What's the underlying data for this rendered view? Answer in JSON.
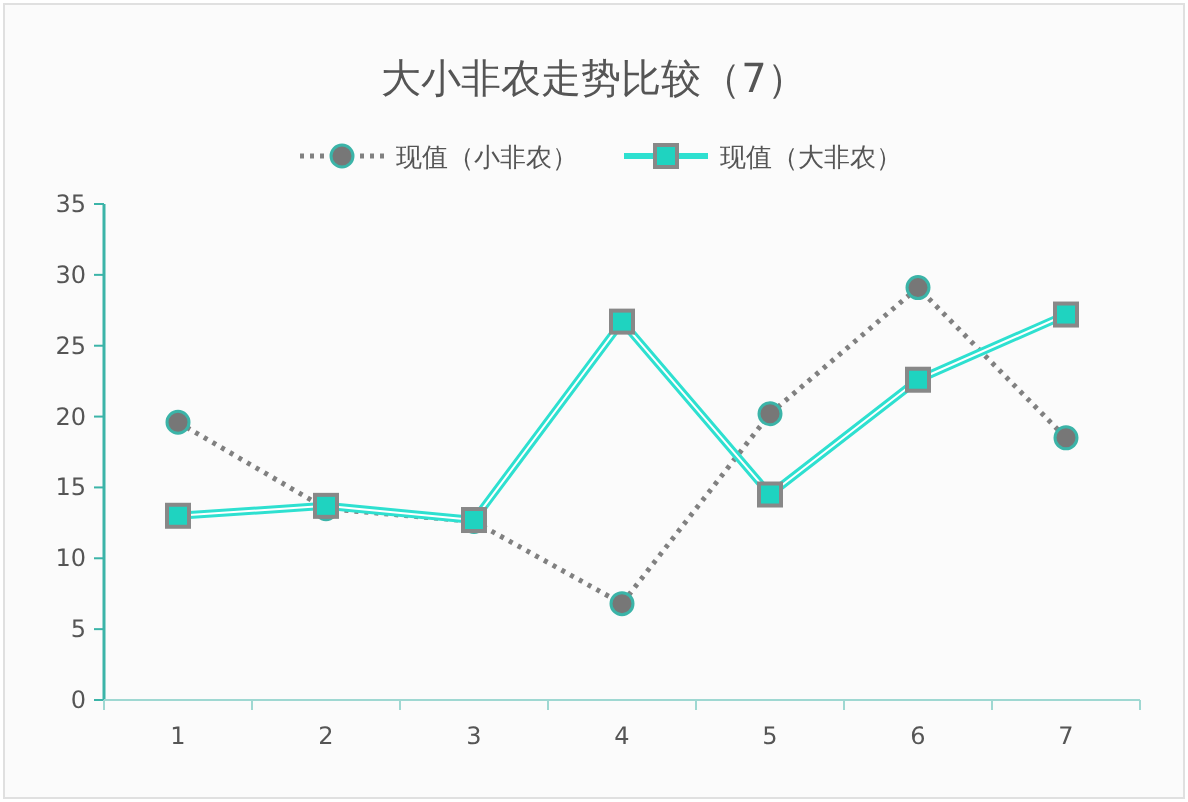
{
  "chart_data": {
    "type": "line",
    "title": "大小非农走势比较（7）",
    "categories": [
      "1",
      "2",
      "3",
      "4",
      "5",
      "6",
      "7"
    ],
    "series": [
      {
        "name": "现值（小非农）",
        "color": "#808080",
        "line_style": "dotted",
        "marker": "circle",
        "values": [
          19.6,
          13.5,
          12.6,
          6.8,
          20.2,
          29.1,
          18.5
        ]
      },
      {
        "name": "现值（大非农）",
        "color": "#2ee0d0",
        "line_style": "solid",
        "marker": "square",
        "values": [
          13.0,
          13.7,
          12.7,
          26.7,
          14.5,
          22.6,
          27.2
        ]
      }
    ],
    "ylim": [
      0,
      35
    ],
    "yticks": [
      0,
      5,
      10,
      15,
      20,
      25,
      30,
      35
    ],
    "grid": false,
    "legend": "top"
  }
}
